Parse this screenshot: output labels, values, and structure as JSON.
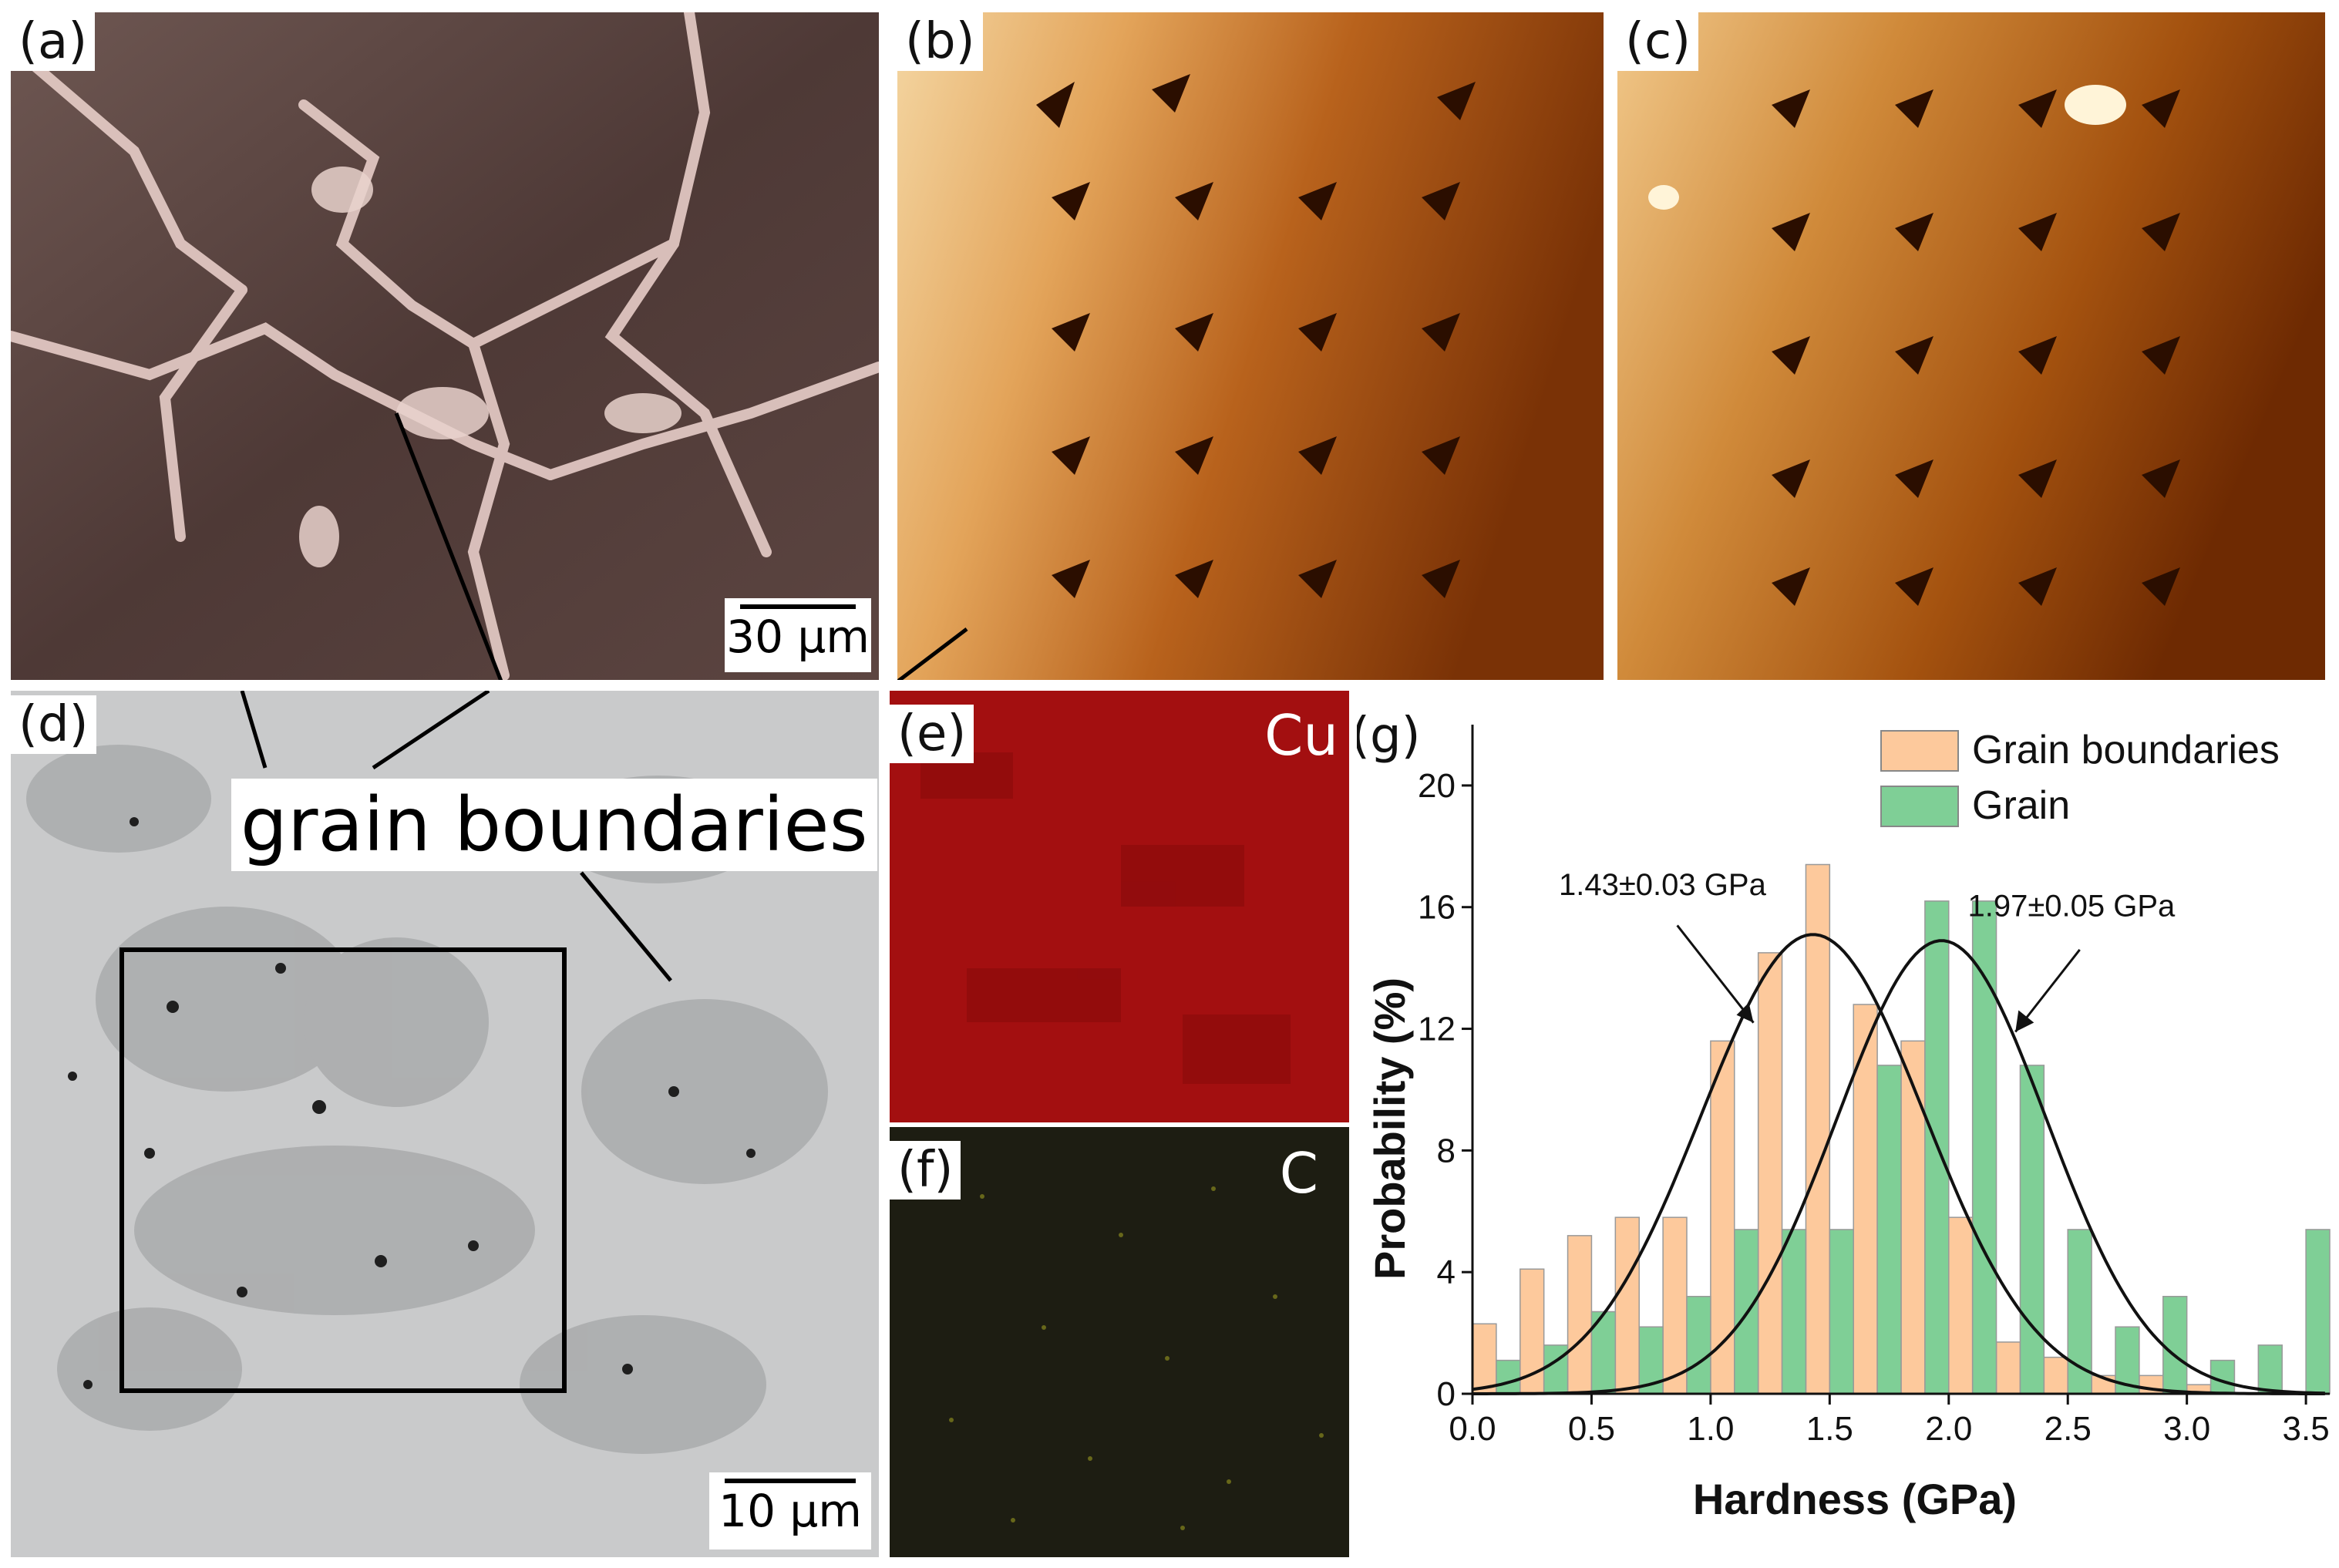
{
  "panels": {
    "a": {
      "label": "(a)",
      "scale": "30 μm"
    },
    "b": {
      "label": "(b)"
    },
    "c": {
      "label": "(c)"
    },
    "d": {
      "label": "(d)",
      "scale": "10 μm",
      "annotation": "grain boundaries"
    },
    "e": {
      "label": "(e)",
      "element": "Cu"
    },
    "f": {
      "label": "(f)",
      "element": "C"
    },
    "g": {
      "label": "(g)"
    }
  },
  "colors": {
    "grain_boundaries": "#fdc99c",
    "grain": "#7fcf96",
    "fit": "#111111"
  },
  "chart_data": {
    "type": "bar",
    "xlabel": "Hardness (GPa)",
    "ylabel": "Probability (%)",
    "xlim": [
      0,
      3.6
    ],
    "ylim": [
      0,
      22
    ],
    "xticks": [
      "0.0",
      "0.5",
      "1.0",
      "1.5",
      "2.0",
      "2.5",
      "3.0",
      "3.5"
    ],
    "yticks": [
      "0",
      "4",
      "8",
      "12",
      "16",
      "20"
    ],
    "legend": "top-right",
    "series": [
      {
        "name": "Grain boundaries",
        "x": [
          0.05,
          0.25,
          0.45,
          0.65,
          0.85,
          1.05,
          1.25,
          1.45,
          1.65,
          1.85,
          2.05,
          2.25,
          2.45,
          2.65,
          2.85,
          3.05
        ],
        "values": [
          2.3,
          4.1,
          5.2,
          5.8,
          5.8,
          11.6,
          14.5,
          17.4,
          12.8,
          11.6,
          5.8,
          1.7,
          1.2,
          0.6,
          0.6,
          0.3
        ]
      },
      {
        "name": "Grain",
        "x": [
          0.15,
          0.35,
          0.55,
          0.75,
          0.95,
          1.15,
          1.35,
          1.55,
          1.75,
          1.95,
          2.15,
          2.35,
          2.55,
          2.75,
          2.95,
          3.15,
          3.35,
          3.55
        ],
        "values": [
          1.1,
          1.6,
          2.7,
          2.2,
          3.2,
          5.4,
          5.4,
          5.4,
          10.8,
          16.2,
          16.2,
          10.8,
          5.4,
          2.2,
          3.2,
          1.1,
          1.6,
          5.4
        ]
      }
    ],
    "fits": [
      {
        "mean": 1.43,
        "sigma": 0.47,
        "peak": 15.1,
        "annotation": "1.43±0.03 GPa"
      },
      {
        "mean": 1.97,
        "sigma": 0.44,
        "peak": 14.9,
        "annotation": "1.97±0.05 GPa"
      }
    ]
  }
}
